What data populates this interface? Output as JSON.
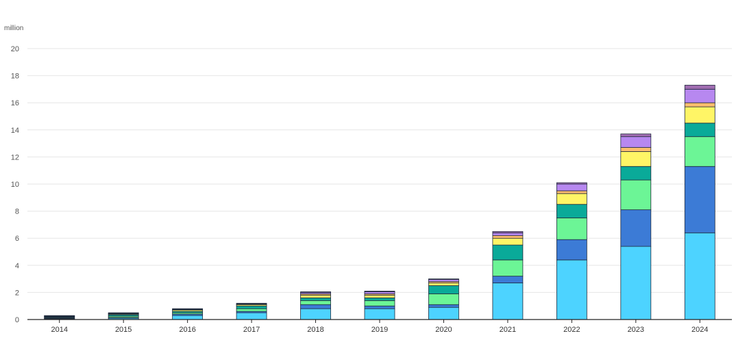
{
  "chart_data": {
    "type": "bar",
    "stacked": true,
    "title": "",
    "xlabel": "",
    "ylabel": "million",
    "ylim": [
      0,
      20
    ],
    "yticks": [
      0,
      2,
      4,
      6,
      8,
      10,
      12,
      14,
      16,
      18,
      20
    ],
    "grid": true,
    "legend": "none",
    "categories": [
      "2014",
      "2015",
      "2016",
      "2017",
      "2018",
      "2019",
      "2020",
      "2021",
      "2022",
      "2023",
      "2024"
    ],
    "series": [
      {
        "color": "#4dd3ff",
        "values": [
          0.05,
          0.1,
          0.3,
          0.5,
          0.8,
          0.8,
          0.9,
          2.7,
          4.4,
          5.4,
          6.4
        ]
      },
      {
        "color": "#3c7bd6",
        "values": [
          0.03,
          0.05,
          0.1,
          0.1,
          0.3,
          0.2,
          0.2,
          0.5,
          1.5,
          2.7,
          4.9
        ]
      },
      {
        "color": "#6cf596",
        "values": [
          0.05,
          0.1,
          0.1,
          0.2,
          0.3,
          0.4,
          0.8,
          1.2,
          1.6,
          2.2,
          2.2
        ]
      },
      {
        "color": "#0aaa99",
        "values": [
          0.05,
          0.1,
          0.1,
          0.2,
          0.2,
          0.2,
          0.6,
          1.1,
          1.0,
          1.0,
          1.0
        ]
      },
      {
        "color": "#fff566",
        "values": [
          0.04,
          0.05,
          0.1,
          0.1,
          0.2,
          0.2,
          0.2,
          0.5,
          0.8,
          1.1,
          1.2
        ]
      },
      {
        "color": "#ffbe6e",
        "values": [
          0.03,
          0.03,
          0.03,
          0.03,
          0.1,
          0.1,
          0.1,
          0.2,
          0.2,
          0.3,
          0.3
        ]
      },
      {
        "color": "#b788f0",
        "values": [
          0.02,
          0.04,
          0.04,
          0.04,
          0.1,
          0.15,
          0.15,
          0.2,
          0.5,
          0.8,
          1.0
        ]
      },
      {
        "color": "#9f6cb0",
        "values": [
          0.02,
          0.03,
          0.03,
          0.03,
          0.05,
          0.05,
          0.05,
          0.1,
          0.1,
          0.2,
          0.3
        ]
      }
    ]
  }
}
